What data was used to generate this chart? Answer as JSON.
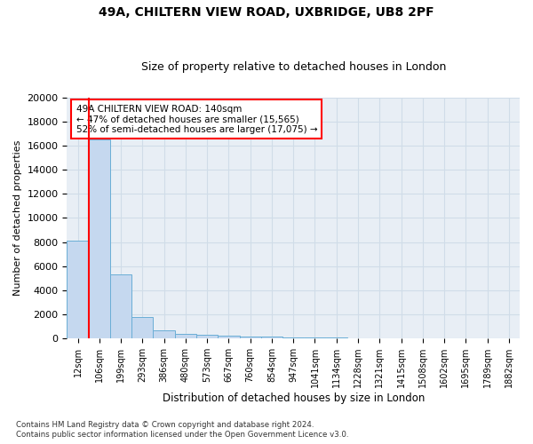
{
  "title1": "49A, CHILTERN VIEW ROAD, UXBRIDGE, UB8 2PF",
  "title2": "Size of property relative to detached houses in London",
  "xlabel": "Distribution of detached houses by size in London",
  "ylabel": "Number of detached properties",
  "footnote1": "Contains HM Land Registry data © Crown copyright and database right 2024.",
  "footnote2": "Contains public sector information licensed under the Open Government Licence v3.0.",
  "bar_labels": [
    "12sqm",
    "106sqm",
    "199sqm",
    "293sqm",
    "386sqm",
    "480sqm",
    "573sqm",
    "667sqm",
    "760sqm",
    "854sqm",
    "947sqm",
    "1041sqm",
    "1134sqm",
    "1228sqm",
    "1321sqm",
    "1415sqm",
    "1508sqm",
    "1602sqm",
    "1695sqm",
    "1789sqm",
    "1882sqm"
  ],
  "bar_values": [
    8100,
    16500,
    5300,
    1750,
    650,
    350,
    280,
    220,
    200,
    130,
    90,
    70,
    55,
    40,
    30,
    25,
    20,
    15,
    12,
    10,
    8
  ],
  "bar_color": "#c5d8ef",
  "bar_edgecolor": "#6aaed6",
  "ylim": [
    0,
    20000
  ],
  "yticks": [
    0,
    2000,
    4000,
    6000,
    8000,
    10000,
    12000,
    14000,
    16000,
    18000,
    20000
  ],
  "red_line_x": 1,
  "annotation_text1": "49A CHILTERN VIEW ROAD: 140sqm",
  "annotation_text2": "← 47% of detached houses are smaller (15,565)",
  "annotation_text3": "52% of semi-detached houses are larger (17,075) →",
  "annotation_box_color": "white",
  "annotation_border_color": "red",
  "red_line_color": "red",
  "grid_color": "#d0dce8",
  "bg_color": "#e8eef5"
}
